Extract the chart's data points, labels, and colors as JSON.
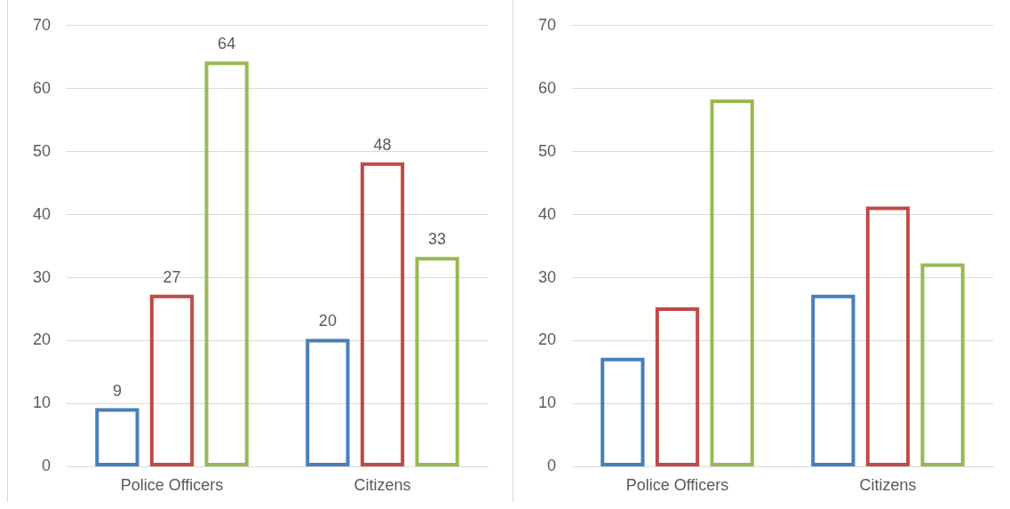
{
  "chart_data": [
    {
      "type": "bar",
      "categories": [
        "Police Officers",
        "Citizens"
      ],
      "series": [
        {
          "color": "#4a7ebb",
          "values": [
            9,
            20
          ]
        },
        {
          "color": "#be4b48",
          "values": [
            27,
            48
          ]
        },
        {
          "color": "#98b954",
          "values": [
            64,
            33
          ]
        }
      ],
      "ylim": [
        0,
        70
      ],
      "yticks": [
        0,
        10,
        20,
        30,
        40,
        50,
        60,
        70
      ],
      "grid": "y",
      "legend": false,
      "data_labels": true
    },
    {
      "type": "bar",
      "categories": [
        "Police Officers",
        "Citizens"
      ],
      "series": [
        {
          "color": "#4a7ebb",
          "values": [
            17,
            27
          ]
        },
        {
          "color": "#be4b48",
          "values": [
            25,
            41
          ]
        },
        {
          "color": "#98b954",
          "values": [
            58,
            32
          ]
        }
      ],
      "ylim": [
        0,
        70
      ],
      "yticks": [
        0,
        10,
        20,
        30,
        40,
        50,
        60,
        70
      ],
      "grid": "y",
      "legend": false
    }
  ]
}
